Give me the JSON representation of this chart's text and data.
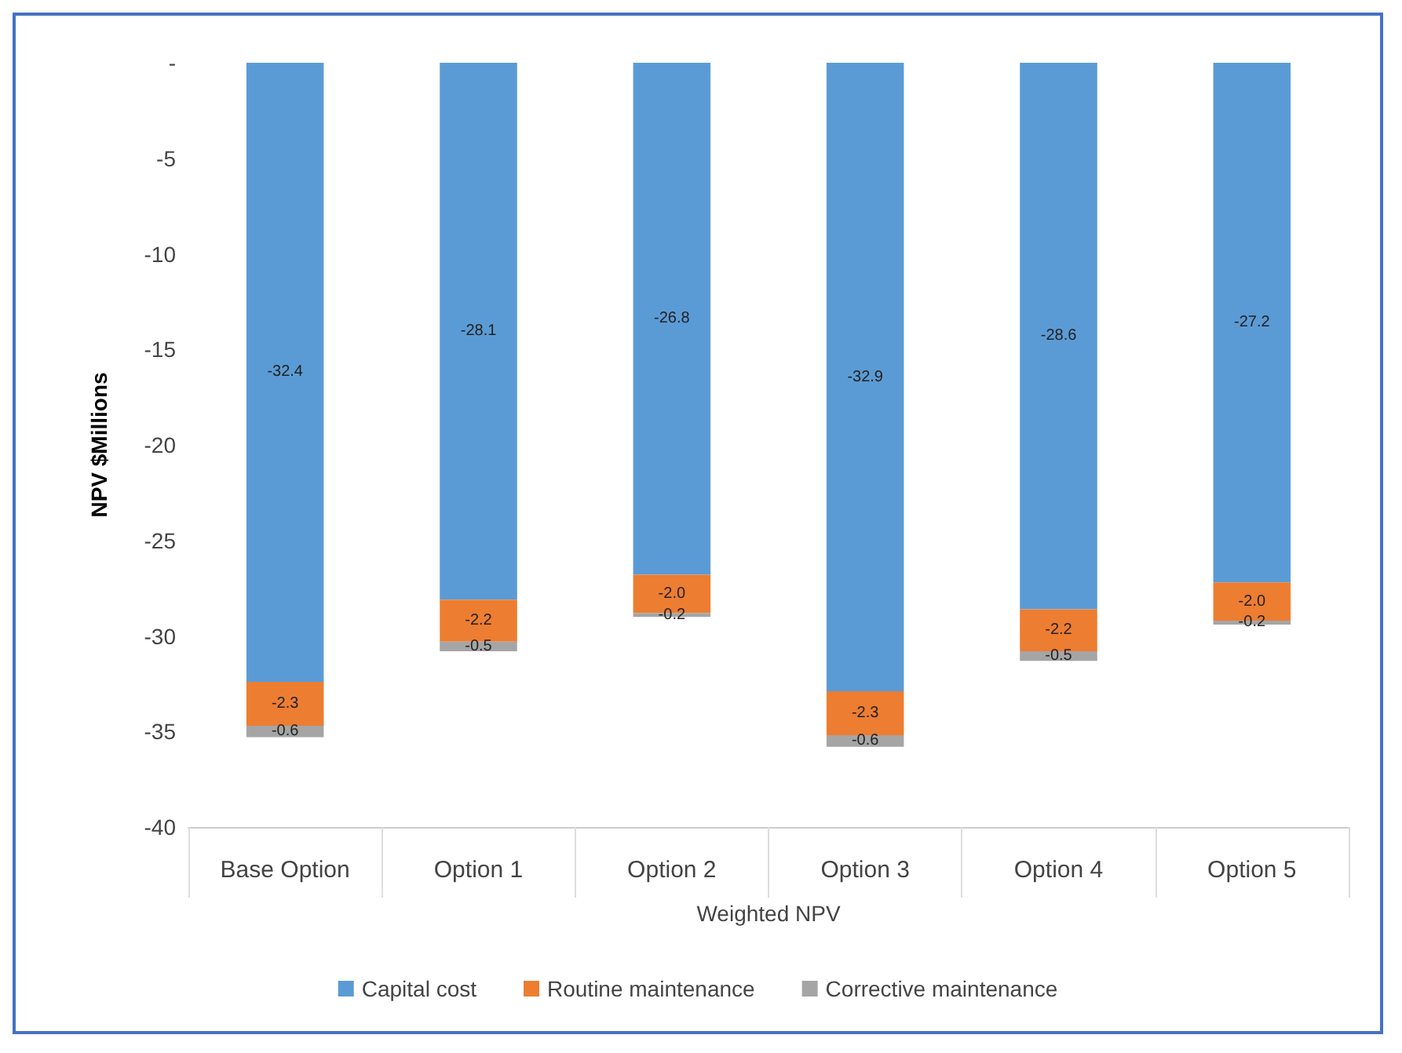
{
  "chart_data": {
    "type": "bar",
    "stacked": true,
    "xlabel": "Weighted NPV",
    "ylabel": "NPV $Millions",
    "categories": [
      "Base Option",
      "Option 1",
      "Option 2",
      "Option 3",
      "Option 4",
      "Option 5"
    ],
    "series": [
      {
        "name": "Capital cost",
        "color": "#5b9bd5",
        "values": [
          -32.4,
          -28.1,
          -26.8,
          -32.9,
          -28.6,
          -27.2
        ],
        "value_labels": [
          "-32.4",
          "-28.1",
          "-26.8",
          "-32.9",
          "-28.6",
          "-27.2"
        ]
      },
      {
        "name": "Routine maintenance",
        "color": "#ed7d31",
        "values": [
          -2.3,
          -2.2,
          -2.0,
          -2.3,
          -2.2,
          -2.0
        ],
        "value_labels": [
          "-2.3",
          "-2.2",
          "-2.0",
          "-2.3",
          "-2.2",
          "-2.0"
        ]
      },
      {
        "name": "Corrective maintenance",
        "color": "#a5a5a5",
        "values": [
          -0.6,
          -0.5,
          -0.2,
          -0.6,
          -0.5,
          -0.2
        ],
        "value_labels": [
          "-0.6",
          "-0.5",
          "-0.2",
          "-0.6",
          "-0.5",
          "-0.2"
        ]
      }
    ],
    "ylim": [
      -40,
      0
    ],
    "yticks": [
      {
        "value": 0,
        "label": "-"
      },
      -5,
      -10,
      -15,
      -20,
      -25,
      -30,
      -35,
      -40
    ],
    "grid": false,
    "legend": "bottom"
  }
}
